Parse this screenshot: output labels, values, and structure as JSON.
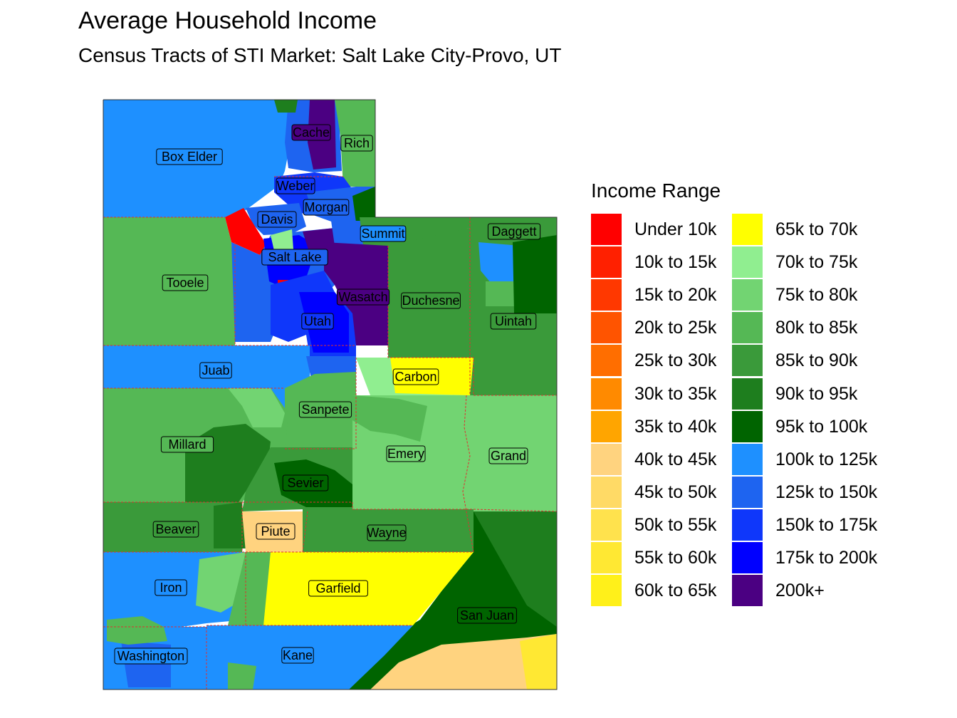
{
  "title": "Average Household Income",
  "subtitle": "Census Tracts of STI Market: Salt Lake City-Provo, UT",
  "legend": {
    "title": "Income Range",
    "items": [
      {
        "label": "Under 10k",
        "color": "#FF0000"
      },
      {
        "label": "10k to 15k",
        "color": "#FF2000"
      },
      {
        "label": "15k to 20k",
        "color": "#FF3800"
      },
      {
        "label": "20k to 25k",
        "color": "#FF5400"
      },
      {
        "label": "25k to 30k",
        "color": "#FF6E00"
      },
      {
        "label": "30k to 35k",
        "color": "#FF8A00"
      },
      {
        "label": "35k to 40k",
        "color": "#FFA500"
      },
      {
        "label": "40k to 45k",
        "color": "#FFD37F"
      },
      {
        "label": "45k to 50k",
        "color": "#FFDA66"
      },
      {
        "label": "50k to 55k",
        "color": "#FFE24D"
      },
      {
        "label": "55k to 60k",
        "color": "#FFE833"
      },
      {
        "label": "60k to 65k",
        "color": "#FFF01A"
      },
      {
        "label": "65k to 70k",
        "color": "#FFFF00"
      },
      {
        "label": "70k to 75k",
        "color": "#90EE90"
      },
      {
        "label": "75k to 80k",
        "color": "#72D472"
      },
      {
        "label": "80k to 85k",
        "color": "#55B855"
      },
      {
        "label": "85k to 90k",
        "color": "#3A9A3A"
      },
      {
        "label": "90k to 95k",
        "color": "#1E7E1E"
      },
      {
        "label": "95k to 100k",
        "color": "#006400"
      },
      {
        "label": "100k to 125k",
        "color": "#1E90FF"
      },
      {
        "label": "125k to 150k",
        "color": "#1E64F0"
      },
      {
        "label": "150k to 175k",
        "color": "#0F37FA"
      },
      {
        "label": "175k to 200k",
        "color": "#0000FF"
      },
      {
        "label": "200k+",
        "color": "#4B0082"
      }
    ]
  },
  "counties": {
    "box_elder": "Box Elder",
    "cache": "Cache",
    "rich": "Rich",
    "weber": "Weber",
    "morgan": "Morgan",
    "davis": "Davis",
    "summit": "Summit",
    "daggett": "Daggett",
    "salt_lake": "Salt Lake",
    "tooele": "Tooele",
    "wasatch": "Wasatch",
    "duchesne": "Duchesne",
    "uintah": "Uintah",
    "utah": "Utah",
    "juab": "Juab",
    "carbon": "Carbon",
    "sanpete": "Sanpete",
    "millard": "Millard",
    "emery": "Emery",
    "grand": "Grand",
    "sevier": "Sevier",
    "beaver": "Beaver",
    "piute": "Piute",
    "wayne": "Wayne",
    "iron": "Iron",
    "garfield": "Garfield",
    "san_juan": "San Juan",
    "washington": "Washington",
    "kane": "Kane"
  }
}
